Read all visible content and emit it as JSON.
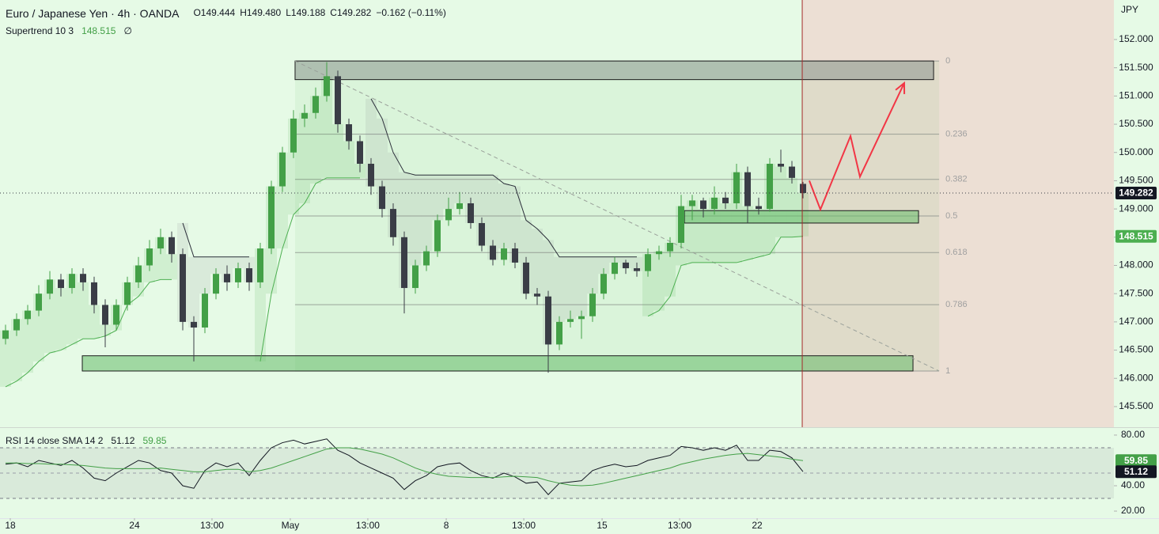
{
  "chart_data": {
    "type": "candlestick",
    "title": "Euro / Japanese Yen · 4h · OANDA",
    "ohlc_legend": [
      "O149.444",
      "H149.480",
      "L149.188",
      "C149.282",
      "−0.162 (−0.11%)"
    ],
    "unit": "JPY",
    "up_color": "#43a047",
    "down_color": "#3a3d46",
    "xlim": [
      -0.5,
      100.07
    ],
    "xticks": [
      {
        "value": 0.43,
        "label": "18"
      },
      {
        "value": 11.64,
        "label": "24"
      },
      {
        "value": 18.64,
        "label": "13:00"
      },
      {
        "value": 25.71,
        "label": "May"
      },
      {
        "value": 32.71,
        "label": "13:00"
      },
      {
        "value": 39.79,
        "label": "8"
      },
      {
        "value": 46.79,
        "label": "13:00"
      },
      {
        "value": 53.86,
        "label": "15"
      },
      {
        "value": 60.86,
        "label": "13:00"
      },
      {
        "value": 67.86,
        "label": "22"
      }
    ],
    "ylim": [
      145.135,
      152.7
    ],
    "yticks": [
      {
        "value": 152,
        "label": "152.000"
      },
      {
        "value": 151.5,
        "label": "151.500"
      },
      {
        "value": 151,
        "label": "151.000"
      },
      {
        "value": 150.5,
        "label": "150.500"
      },
      {
        "value": 150,
        "label": "150.000"
      },
      {
        "value": 149.5,
        "label": "149.500"
      },
      {
        "value": 149,
        "label": "149.000"
      },
      {
        "value": 148.5,
        "label": "148.500"
      },
      {
        "value": 148,
        "label": "148.000"
      },
      {
        "value": 147.5,
        "label": "147.500"
      },
      {
        "value": 147,
        "label": "147.000"
      },
      {
        "value": 146.5,
        "label": "146.500"
      },
      {
        "value": 146,
        "label": "146.000"
      },
      {
        "value": 145.5,
        "label": "145.500"
      }
    ],
    "ohlc": [
      [
        146.7,
        146.95,
        146.6,
        146.85
      ],
      [
        146.85,
        147.15,
        146.75,
        147.05
      ],
      [
        147.05,
        147.3,
        146.95,
        147.2
      ],
      [
        147.2,
        147.65,
        147.1,
        147.5
      ],
      [
        147.5,
        147.9,
        147.4,
        147.75
      ],
      [
        147.75,
        147.85,
        147.45,
        147.6
      ],
      [
        147.6,
        147.95,
        147.5,
        147.85
      ],
      [
        147.85,
        147.95,
        147.55,
        147.7
      ],
      [
        147.7,
        147.8,
        147.15,
        147.3
      ],
      [
        147.3,
        147.4,
        146.55,
        146.95
      ],
      [
        146.95,
        147.4,
        146.85,
        147.3
      ],
      [
        147.3,
        147.8,
        147.2,
        147.7
      ],
      [
        147.7,
        148.15,
        147.6,
        148.0
      ],
      [
        148.0,
        148.45,
        147.9,
        148.3
      ],
      [
        148.3,
        148.65,
        148.2,
        148.5
      ],
      [
        148.5,
        148.6,
        148.05,
        148.2
      ],
      [
        148.2,
        148.3,
        146.85,
        147.0
      ],
      [
        147.0,
        147.1,
        146.3,
        146.9
      ],
      [
        146.9,
        147.6,
        146.8,
        147.5
      ],
      [
        147.5,
        147.95,
        147.4,
        147.85
      ],
      [
        147.85,
        148.0,
        147.55,
        147.7
      ],
      [
        147.7,
        148.05,
        147.6,
        147.95
      ],
      [
        147.95,
        148.05,
        147.55,
        147.7
      ],
      [
        147.7,
        148.4,
        147.6,
        148.3
      ],
      [
        148.3,
        149.5,
        148.2,
        149.4
      ],
      [
        149.4,
        150.1,
        149.3,
        150.0
      ],
      [
        150.0,
        150.75,
        149.9,
        150.6
      ],
      [
        150.6,
        150.85,
        150.45,
        150.7
      ],
      [
        150.7,
        151.15,
        150.6,
        151.0
      ],
      [
        151.0,
        151.6,
        150.9,
        151.35
      ],
      [
        151.35,
        151.45,
        150.35,
        150.5
      ],
      [
        150.5,
        150.6,
        150.05,
        150.2
      ],
      [
        150.2,
        150.3,
        149.65,
        149.8
      ],
      [
        149.8,
        149.9,
        149.25,
        149.4
      ],
      [
        149.4,
        149.5,
        148.85,
        149.0
      ],
      [
        149.0,
        149.1,
        148.35,
        148.5
      ],
      [
        148.5,
        148.6,
        147.15,
        147.6
      ],
      [
        147.6,
        148.1,
        147.5,
        148.0
      ],
      [
        148.0,
        148.35,
        147.9,
        148.25
      ],
      [
        148.25,
        148.9,
        148.15,
        148.8
      ],
      [
        148.8,
        149.2,
        148.7,
        149.0
      ],
      [
        149.0,
        149.3,
        148.9,
        149.1
      ],
      [
        149.1,
        149.2,
        148.65,
        148.75
      ],
      [
        148.75,
        148.85,
        148.25,
        148.35
      ],
      [
        148.35,
        148.45,
        148.0,
        148.1
      ],
      [
        148.1,
        148.4,
        148.0,
        148.3
      ],
      [
        148.3,
        148.4,
        147.95,
        148.05
      ],
      [
        148.05,
        148.15,
        147.4,
        147.5
      ],
      [
        147.5,
        147.6,
        147.3,
        147.45
      ],
      [
        147.45,
        147.55,
        146.1,
        146.6
      ],
      [
        146.6,
        147.1,
        146.5,
        147.0
      ],
      [
        147.0,
        147.2,
        146.9,
        147.05
      ],
      [
        147.05,
        147.2,
        146.7,
        147.1
      ],
      [
        147.1,
        147.6,
        147.0,
        147.5
      ],
      [
        147.5,
        147.95,
        147.4,
        147.85
      ],
      [
        147.85,
        148.15,
        147.75,
        148.05
      ],
      [
        148.05,
        148.1,
        147.85,
        147.95
      ],
      [
        147.95,
        148.05,
        147.8,
        147.9
      ],
      [
        147.9,
        148.3,
        147.8,
        148.2
      ],
      [
        148.2,
        148.35,
        148.1,
        148.25
      ],
      [
        148.25,
        148.5,
        148.15,
        148.4
      ],
      [
        148.4,
        149.25,
        148.3,
        149.05
      ],
      [
        149.05,
        149.25,
        148.8,
        149.15
      ],
      [
        149.15,
        149.2,
        148.85,
        149.0
      ],
      [
        149.0,
        149.4,
        148.9,
        149.2
      ],
      [
        149.2,
        149.3,
        149.0,
        149.1
      ],
      [
        149.1,
        149.8,
        149.0,
        149.65
      ],
      [
        149.65,
        149.75,
        148.75,
        149.05
      ],
      [
        149.05,
        149.2,
        148.9,
        149.0
      ],
      [
        149.0,
        149.9,
        148.95,
        149.8
      ],
      [
        149.8,
        150.05,
        149.65,
        149.75
      ],
      [
        149.75,
        149.85,
        149.45,
        149.55
      ],
      [
        149.444,
        149.48,
        149.188,
        149.282
      ]
    ],
    "supertrend": {
      "name": "Supertrend 10 3",
      "symbol": "∅",
      "up": {
        "color": "#4caf50",
        "values": [
          145.85,
          145.95,
          146.1,
          146.3,
          146.45,
          146.5,
          146.6,
          146.7,
          146.7,
          146.75,
          146.85,
          147.3,
          147.45,
          147.7,
          147.75,
          147.75,
          null,
          null,
          null,
          null,
          null,
          null,
          null,
          146.3,
          147.5,
          148.3,
          148.9,
          149.1,
          149.45,
          149.55,
          149.55,
          149.55,
          149.55,
          null,
          null,
          null,
          null,
          null,
          null,
          null,
          null,
          null,
          null,
          null,
          null,
          null,
          null,
          null,
          null,
          null,
          null,
          null,
          null,
          null,
          null,
          null,
          null,
          null,
          147.1,
          147.2,
          147.45,
          148.0,
          148.05,
          148.05,
          148.05,
          148.05,
          148.05,
          148.1,
          148.15,
          148.2,
          148.5,
          148.5,
          148.515
        ]
      },
      "down": {
        "color": "#2a2e39",
        "values": [
          null,
          null,
          null,
          null,
          null,
          null,
          null,
          null,
          null,
          null,
          null,
          null,
          null,
          null,
          null,
          null,
          148.75,
          148.15,
          148.15,
          148.15,
          148.15,
          148.15,
          148.15,
          null,
          null,
          null,
          null,
          null,
          null,
          null,
          null,
          null,
          null,
          150.95,
          150.6,
          150.0,
          149.65,
          149.6,
          149.6,
          149.6,
          149.6,
          149.6,
          149.6,
          149.6,
          149.6,
          149.45,
          149.4,
          148.8,
          148.65,
          148.45,
          148.15,
          148.15,
          148.15,
          148.15,
          148.15,
          148.15,
          148.15,
          148.15,
          null,
          null,
          null,
          null,
          null,
          null,
          null,
          null,
          null,
          null,
          null,
          null,
          null,
          null,
          null
        ]
      }
    },
    "zones": [
      {
        "color": "#8d9690",
        "x": [
          26.14,
          83.79
        ],
        "y": [
          151.29,
          151.62
        ]
      },
      {
        "color": "#66bb6a",
        "x": [
          6.93,
          81.93
        ],
        "y": [
          146.13,
          146.4
        ]
      },
      {
        "color": "#66bb6a",
        "x": [
          61.29,
          82.43
        ],
        "y": [
          148.75,
          148.97
        ]
      }
    ],
    "fib": {
      "x": [
        26.14,
        84.29
      ],
      "prices": [
        151.62,
        146.13
      ],
      "levels": [
        0,
        0.236,
        0.382,
        0.5,
        0.618,
        0.786,
        1
      ]
    },
    "trendline": {
      "x": [
        26.14,
        84.29
      ],
      "y": [
        151.62,
        146.13
      ]
    },
    "projection": {
      "color": "#f23645",
      "x": [
        72.57,
        73.57,
        76.29,
        77.14,
        81.14
      ],
      "y": [
        149.5,
        148.99,
        150.29,
        149.57,
        151.23
      ]
    },
    "future_start": 71.93,
    "rsi": {
      "name": "RSI 14 close SMA 14 2",
      "ylim": [
        14.4,
        85.6
      ],
      "yticks": [
        {
          "value": 80,
          "label": "80.00"
        },
        {
          "value": 40,
          "label": "40.00"
        },
        {
          "value": 20,
          "label": "20.00"
        }
      ],
      "bands": [
        30,
        70
      ],
      "midline": 50,
      "series": [
        {
          "color": "#131722",
          "values": [
            57,
            58,
            55,
            60,
            58,
            56,
            60,
            54,
            46,
            44,
            50,
            55,
            60,
            58,
            52,
            50,
            40,
            38,
            52,
            58,
            55,
            58,
            48,
            60,
            70,
            74,
            76,
            73,
            75,
            77,
            68,
            64,
            58,
            54,
            50,
            46,
            37,
            44,
            48,
            55,
            57,
            58,
            52,
            48,
            46,
            50,
            47,
            42,
            43,
            33,
            42,
            43,
            44,
            52,
            55,
            57,
            55,
            56,
            60,
            62,
            64,
            71,
            70,
            68,
            70,
            68,
            72,
            60,
            60,
            68,
            67,
            62,
            51.12
          ]
        },
        {
          "color": "#43a047",
          "values": [
            58,
            58,
            57.5,
            57.5,
            57,
            57,
            56.5,
            56,
            55,
            54,
            53.5,
            53.5,
            53.5,
            53.5,
            54,
            53,
            52,
            51,
            51,
            52,
            53,
            53,
            51,
            52,
            54,
            57,
            60,
            63,
            66,
            69,
            70,
            70,
            69,
            67,
            65,
            62,
            58,
            54,
            51,
            49,
            47.5,
            47,
            46.5,
            46.5,
            46.5,
            47,
            47.5,
            47,
            46.5,
            44,
            42,
            40.5,
            40,
            40.5,
            42,
            44,
            46,
            48,
            50,
            52,
            54,
            57,
            59,
            61,
            62.5,
            64,
            65,
            65.5,
            64.5,
            63.5,
            62.5,
            61,
            59.85
          ]
        }
      ]
    }
  }
}
